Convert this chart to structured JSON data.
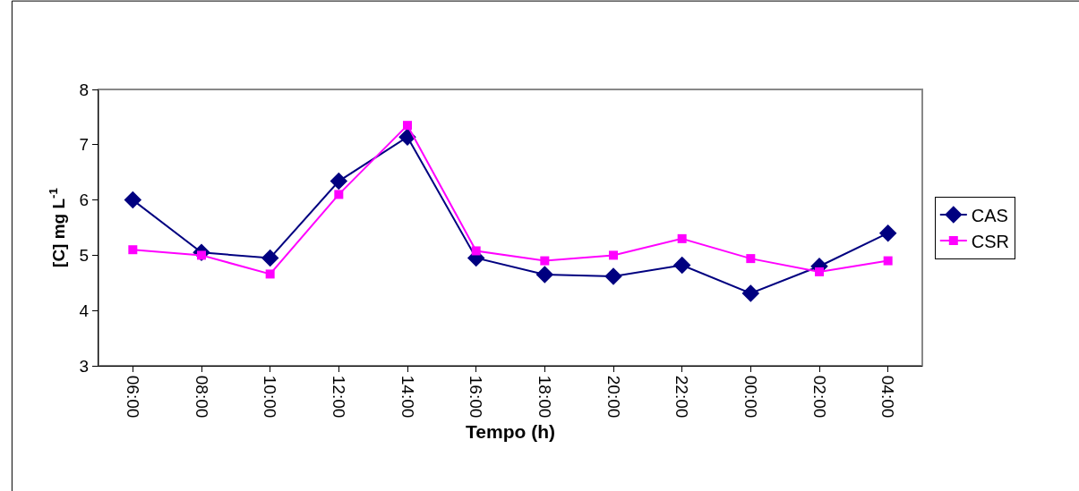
{
  "chart_data": {
    "type": "line",
    "xlabel": "Tempo (h)",
    "ylabel": "[C] mg L$^{-1}$",
    "categories": [
      "06:00",
      "08:00",
      "10:00",
      "12:00",
      "14:00",
      "16:00",
      "18:00",
      "20:00",
      "22:00",
      "00:00",
      "02:00",
      "04:00"
    ],
    "series": [
      {
        "name": "CAS",
        "color": "#000080",
        "marker": "diamond",
        "values": [
          6.0,
          5.05,
          4.95,
          6.34,
          7.14,
          4.95,
          4.65,
          4.62,
          4.82,
          4.31,
          4.8,
          5.4
        ]
      },
      {
        "name": "CSR",
        "color": "#ff00ff",
        "marker": "square",
        "values": [
          5.1,
          5.0,
          4.66,
          6.1,
          7.35,
          5.08,
          4.9,
          5.0,
          5.3,
          4.94,
          4.7,
          4.9
        ]
      }
    ],
    "ylim": [
      3,
      8
    ],
    "yticks": [
      3,
      4,
      5,
      6,
      7,
      8
    ],
    "grid": false,
    "legend": "right",
    "line_style": "solid"
  }
}
